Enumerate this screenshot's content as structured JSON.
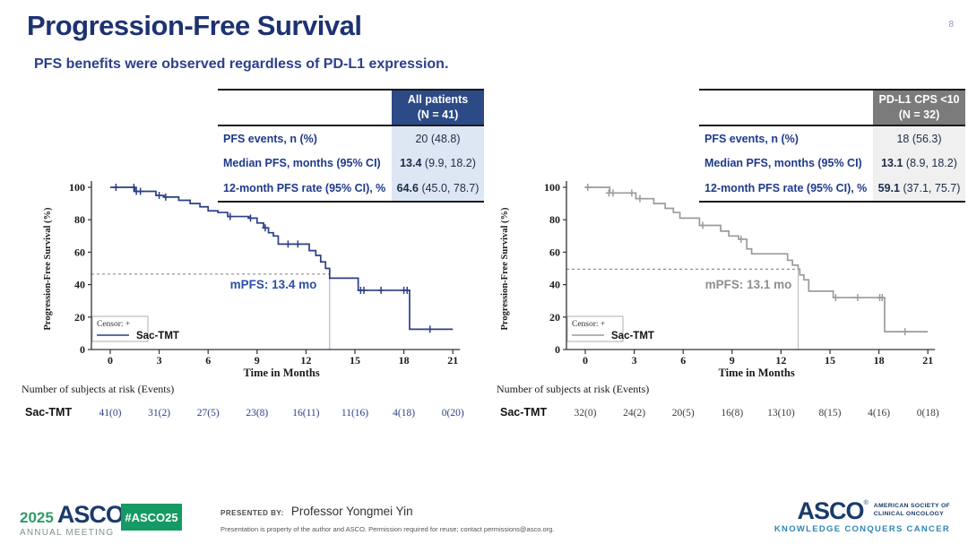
{
  "page": {
    "title": "Progression-Free Survival",
    "page_number": "8",
    "subtitle": "PFS benefits were observed regardless of PD-L1 expression.",
    "reg_mark": "®"
  },
  "panels": [
    {
      "table": {
        "header_line1": "All patients",
        "header_line2": "(N = 41)",
        "header_bg": "#2c4a86",
        "value_bg": "#dde7f3",
        "rows": [
          {
            "label": "PFS events, n (%)",
            "bold": "",
            "rest": "20 (48.8)"
          },
          {
            "label": "Median PFS, months (95% CI)",
            "bold": "13.4",
            "rest": " (9.9, 18.2)"
          },
          {
            "label": "12-month PFS rate (95% CI), %",
            "bold": "64.6",
            "rest": " (45.0, 78.7)"
          }
        ]
      }
    },
    {
      "table": {
        "header_line1": "PD-L1 CPS <10",
        "header_line2": "(N = 32)",
        "header_bg": "#7b7b7b",
        "value_bg": "#f0f0f0",
        "rows": [
          {
            "label": "PFS events, n (%)",
            "bold": "",
            "rest": "18 (56.3)"
          },
          {
            "label": "Median PFS, months (95% CI)",
            "bold": "13.1",
            "rest": " (8.9, 18.2)"
          },
          {
            "label": "12-month PFS rate (95% CI), %",
            "bold": "59.1",
            "rest": " (37.1, 75.7)"
          }
        ]
      }
    }
  ],
  "chart_data": [
    {
      "type": "line",
      "subtype": "kaplan-meier-step",
      "title": "All patients",
      "xlabel": "Time in Months",
      "ylabel": "Progression-Free Survival (%)",
      "xlim": [
        0,
        21
      ],
      "ylim": [
        0,
        100
      ],
      "xticks": [
        0,
        3,
        6,
        9,
        12,
        15,
        18,
        21
      ],
      "yticks": [
        0,
        20,
        40,
        60,
        80,
        100
      ],
      "grid": false,
      "series": [
        {
          "name": "Sac-TMT",
          "color": "#2b3f87",
          "steps": [
            [
              0,
              100
            ],
            [
              1.5,
              97.5
            ],
            [
              2.8,
              95
            ],
            [
              3.3,
              94
            ],
            [
              4.2,
              92
            ],
            [
              4.9,
              90
            ],
            [
              5.5,
              88
            ],
            [
              6.0,
              85.5
            ],
            [
              6.6,
              84.5
            ],
            [
              7.2,
              82
            ],
            [
              8.5,
              81
            ],
            [
              9.0,
              78
            ],
            [
              9.4,
              75
            ],
            [
              9.7,
              72
            ],
            [
              10.0,
              70
            ],
            [
              10.3,
              65
            ],
            [
              12.2,
              61
            ],
            [
              12.6,
              58
            ],
            [
              12.9,
              54
            ],
            [
              13.2,
              50
            ],
            [
              13.45,
              44
            ],
            [
              15.2,
              36.5
            ],
            [
              18.35,
              12.5
            ]
          ],
          "end_time": 21,
          "censors": [
            [
              0.35,
              100
            ],
            [
              1.45,
              100
            ],
            [
              1.6,
              97.5
            ],
            [
              1.85,
              97.5
            ],
            [
              3.0,
              95
            ],
            [
              3.4,
              94
            ],
            [
              7.35,
              82
            ],
            [
              8.6,
              81
            ],
            [
              9.5,
              75
            ],
            [
              10.9,
              65
            ],
            [
              11.5,
              65
            ],
            [
              15.35,
              36.5
            ],
            [
              15.55,
              36.5
            ],
            [
              16.6,
              36.5
            ],
            [
              18.0,
              36.5
            ],
            [
              18.2,
              36.5
            ],
            [
              19.6,
              12.5
            ]
          ]
        }
      ],
      "median": {
        "time": 13.4,
        "time_x": 13.45,
        "surv": 46.5,
        "label": "mPFS: 13.4 mo",
        "label_color": "#2c50a8",
        "vline_color": "#a8b8d8",
        "dash_color": "#8f8f8f"
      },
      "legend": {
        "censor_label": "Censor: +",
        "series_label": "Sac-TMT",
        "position": "lower-left"
      },
      "risk_table": {
        "title": "Number of subjects at risk (Events)",
        "row_label": "Sac-TMT",
        "value_color": "#2b3f87",
        "values": [
          "41(0)",
          "31(2)",
          "27(5)",
          "23(8)",
          "16(11)",
          "11(16)",
          "4(18)",
          "0(20)"
        ]
      }
    },
    {
      "type": "line",
      "subtype": "kaplan-meier-step",
      "title": "PD-L1 CPS <10",
      "xlabel": "Time in Months",
      "ylabel": "Progression-Free Survival (%)",
      "xlim": [
        0,
        21
      ],
      "ylim": [
        0,
        100
      ],
      "xticks": [
        0,
        3,
        6,
        9,
        12,
        15,
        18,
        21
      ],
      "yticks": [
        0,
        20,
        40,
        60,
        80,
        100
      ],
      "grid": false,
      "series": [
        {
          "name": "Sac-TMT",
          "color": "#9b9b9b",
          "steps": [
            [
              0,
              100
            ],
            [
              1.5,
              96.5
            ],
            [
              3.1,
              93
            ],
            [
              4.2,
              90
            ],
            [
              4.9,
              87
            ],
            [
              5.4,
              84.5
            ],
            [
              5.8,
              81
            ],
            [
              7.0,
              76.5
            ],
            [
              8.3,
              73
            ],
            [
              8.8,
              70
            ],
            [
              9.4,
              68
            ],
            [
              9.9,
              62
            ],
            [
              10.2,
              59
            ],
            [
              12.4,
              55
            ],
            [
              12.7,
              52
            ],
            [
              13.05,
              49.5
            ],
            [
              13.15,
              46
            ],
            [
              13.4,
              43
            ],
            [
              13.7,
              36
            ],
            [
              15.2,
              32
            ],
            [
              18.35,
              11
            ]
          ],
          "end_time": 21,
          "censors": [
            [
              0.15,
              100
            ],
            [
              1.45,
              96.5
            ],
            [
              1.7,
              96.5
            ],
            [
              2.85,
              96.5
            ],
            [
              3.35,
              93
            ],
            [
              7.2,
              76.5
            ],
            [
              9.55,
              68
            ],
            [
              15.35,
              32
            ],
            [
              16.7,
              32
            ],
            [
              18.05,
              32
            ],
            [
              18.2,
              32
            ],
            [
              19.6,
              11
            ]
          ]
        }
      ],
      "median": {
        "time": 13.1,
        "time_x": 13.05,
        "surv": 49.5,
        "label": "mPFS: 13.1 mo",
        "label_color": "#8f8f8f",
        "vline_color": "#bfbfbf",
        "dash_color": "#8f8f8f"
      },
      "legend": {
        "censor_label": "Censor: +",
        "series_label": "Sac-TMT",
        "position": "lower-left"
      },
      "risk_table": {
        "title": "Number of subjects at risk (Events)",
        "row_label": "Sac-TMT",
        "value_color": "#3d3d3d",
        "values": [
          "32(0)",
          "24(2)",
          "20(5)",
          "16(8)",
          "13(10)",
          "8(15)",
          "4(16)",
          "0(18)"
        ]
      }
    }
  ],
  "footer": {
    "logo_year": "2025",
    "logo_asco": "ASCO",
    "logo_meeting": "ANNUAL MEETING",
    "hashtag": "#ASCO25",
    "presented_by_label": "PRESENTED BY:",
    "presenter": "Professor Yongmei Yin",
    "disclaimer": "Presentation is property of the author and ASCO. Permission required for reuse; contact permissions@asco.org.",
    "asco_logo": "ASCO",
    "asco_society_line1": "AMERICAN SOCIETY OF",
    "asco_society_line2": "CLINICAL ONCOLOGY",
    "asco_tagline": "KNOWLEDGE CONQUERS CANCER"
  }
}
